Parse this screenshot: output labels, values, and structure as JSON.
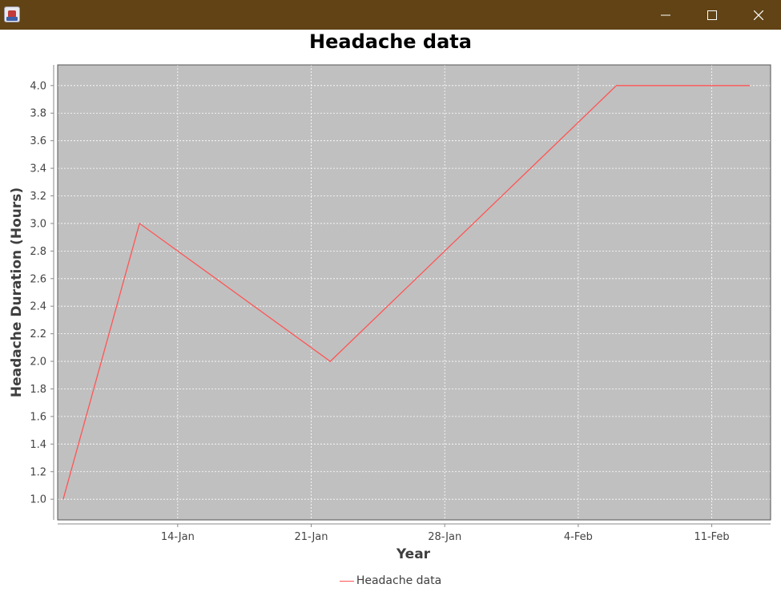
{
  "window": {
    "title": "",
    "app_icon": "java-app-icon",
    "controls": [
      "minimize-icon",
      "maximize-icon",
      "close-icon"
    ],
    "titlebar_color": "#614315"
  },
  "chart_data": {
    "type": "line",
    "title": "Headache data",
    "xlabel": "Year",
    "ylabel": "Headache Duration (Hours)",
    "x_ticks": [
      "14-Jan",
      "21-Jan",
      "28-Jan",
      "4-Feb",
      "11-Feb"
    ],
    "y_ticks": [
      "1.0",
      "1.2",
      "1.4",
      "1.6",
      "1.8",
      "2.0",
      "2.2",
      "2.4",
      "2.6",
      "2.8",
      "3.0",
      "3.2",
      "3.4",
      "3.6",
      "3.8",
      "4.0"
    ],
    "ylim": [
      0.85,
      4.15
    ],
    "xlim": [
      "2024-01-07 17:00",
      "2024-02-14 02:00"
    ],
    "grid": true,
    "legend_position": "bottom",
    "plot_background": "#c0c0c0",
    "series": [
      {
        "name": "Headache data",
        "color": "#ff5555",
        "x": [
          "2024-01-08",
          "2024-01-12",
          "2024-01-22",
          "2024-02-06",
          "2024-02-13"
        ],
        "y": [
          1.0,
          3.0,
          2.0,
          4.0,
          4.0
        ]
      }
    ]
  }
}
